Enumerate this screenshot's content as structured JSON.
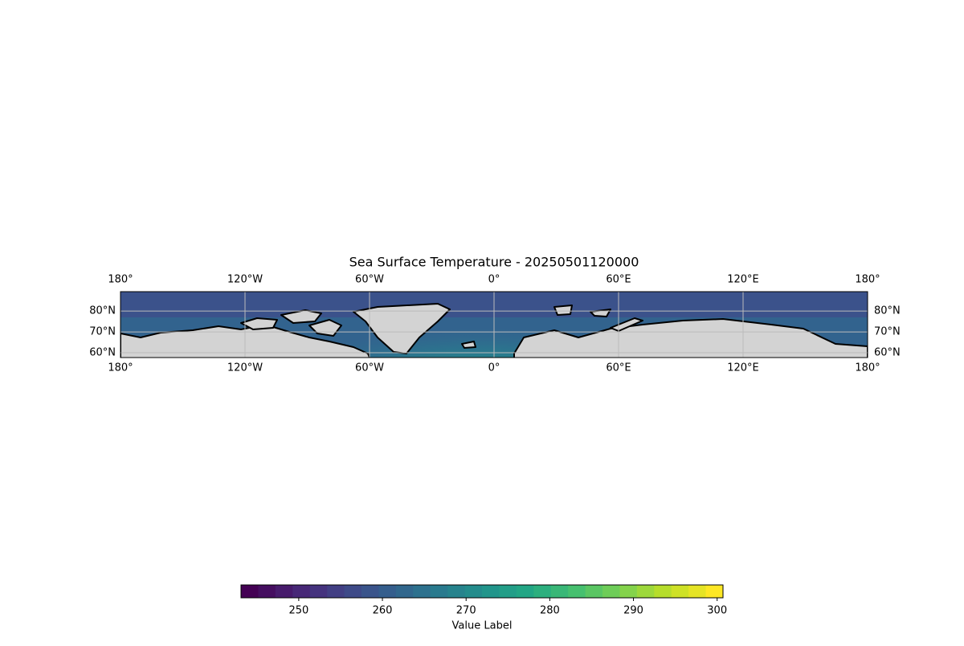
{
  "chart_data": {
    "type": "map",
    "title": "Sea Surface Temperature - 20250501120000",
    "projection": "plate-carree",
    "xlim": [
      -180,
      180
    ],
    "ylim": [
      57.7,
      89.3
    ],
    "xticks": [
      {
        "value": -180,
        "label": "180°"
      },
      {
        "value": -120,
        "label": "120°W"
      },
      {
        "value": -60,
        "label": "60°W"
      },
      {
        "value": 0,
        "label": "0°"
      },
      {
        "value": 60,
        "label": "60°E"
      },
      {
        "value": 120,
        "label": "120°E"
      },
      {
        "value": 180,
        "label": "180°"
      }
    ],
    "yticks": [
      {
        "value": 60,
        "label": "60°N"
      },
      {
        "value": 70,
        "label": "70°N"
      },
      {
        "value": 80,
        "label": "80°N"
      }
    ],
    "grid": true,
    "colorbar": {
      "label": "Value Label",
      "colormap": "viridis",
      "levels": 28,
      "lim": [
        243.1,
        300.7
      ],
      "ticks": [
        250,
        260,
        270,
        280,
        290,
        300
      ]
    }
  }
}
